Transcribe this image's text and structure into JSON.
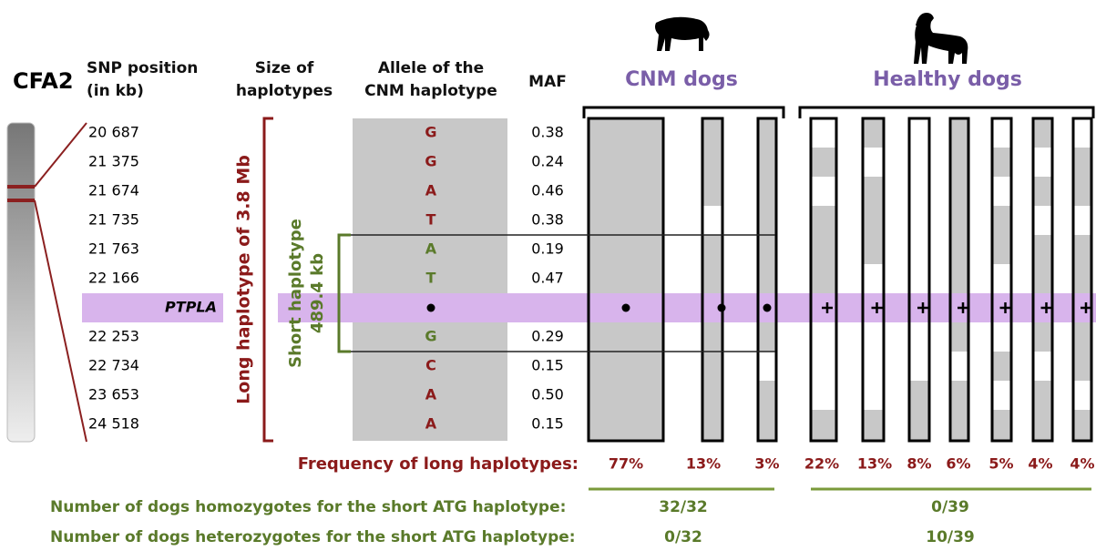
{
  "chromosome": "CFA2",
  "headers": {
    "snp_position": [
      "SNP position",
      "(in kb)"
    ],
    "haplotype_size": [
      "Size of",
      "haplotypes"
    ],
    "allele": [
      "Allele of the",
      "CNM haplotype"
    ],
    "maf": "MAF"
  },
  "groups": [
    "CNM dogs",
    "Healthy dogs"
  ],
  "long_haplotype": "Long  haplotype  of 3.8 Mb",
  "short_haplotype": [
    "Short haplotype",
    "489.4 kb"
  ],
  "rows": [
    {
      "position": "20 687",
      "allele": "G",
      "allele_color": "#8b1a1a",
      "maf": "0.38"
    },
    {
      "position": "21 375",
      "allele": "G",
      "allele_color": "#8b1a1a",
      "maf": "0.24"
    },
    {
      "position": "21 674",
      "allele": "A",
      "allele_color": "#8b1a1a",
      "maf": "0.46"
    },
    {
      "position": "21 735",
      "allele": "T",
      "allele_color": "#8b1a1a",
      "maf": "0.38"
    },
    {
      "position": "21 763",
      "allele": "A",
      "allele_color": "#5a7a2a",
      "maf": "0.19"
    },
    {
      "position": "22 166",
      "allele": "T",
      "allele_color": "#5a7a2a",
      "maf": "0.47"
    },
    {
      "gene": "PTPLA"
    },
    {
      "position": "22 253",
      "allele": "G",
      "allele_color": "#5a7a2a",
      "maf": "0.29"
    },
    {
      "position": "22 734",
      "allele": "C",
      "allele_color": "#8b1a1a",
      "maf": "0.15"
    },
    {
      "position": "23 653",
      "allele": "A",
      "allele_color": "#8b1a1a",
      "maf": "0.50"
    },
    {
      "position": "24 518",
      "allele": "A",
      "allele_color": "#8b1a1a",
      "maf": "0.15"
    }
  ],
  "frequency": {
    "label": "Frequency of long haplotypes:",
    "values": [
      "77%",
      "13%",
      "3%",
      "22%",
      "13%",
      "8%",
      "6%",
      "5%",
      "4%",
      "4%"
    ]
  },
  "homozygotes": {
    "label": "Number of dogs homozygotes for the short ATG haplotype:",
    "values": [
      "32/32",
      "0/39"
    ]
  },
  "heterozygotes": {
    "label": "Number of dogs heterozygotes for the short ATG haplotype:",
    "values": [
      "0/32",
      "10/39"
    ]
  }
}
